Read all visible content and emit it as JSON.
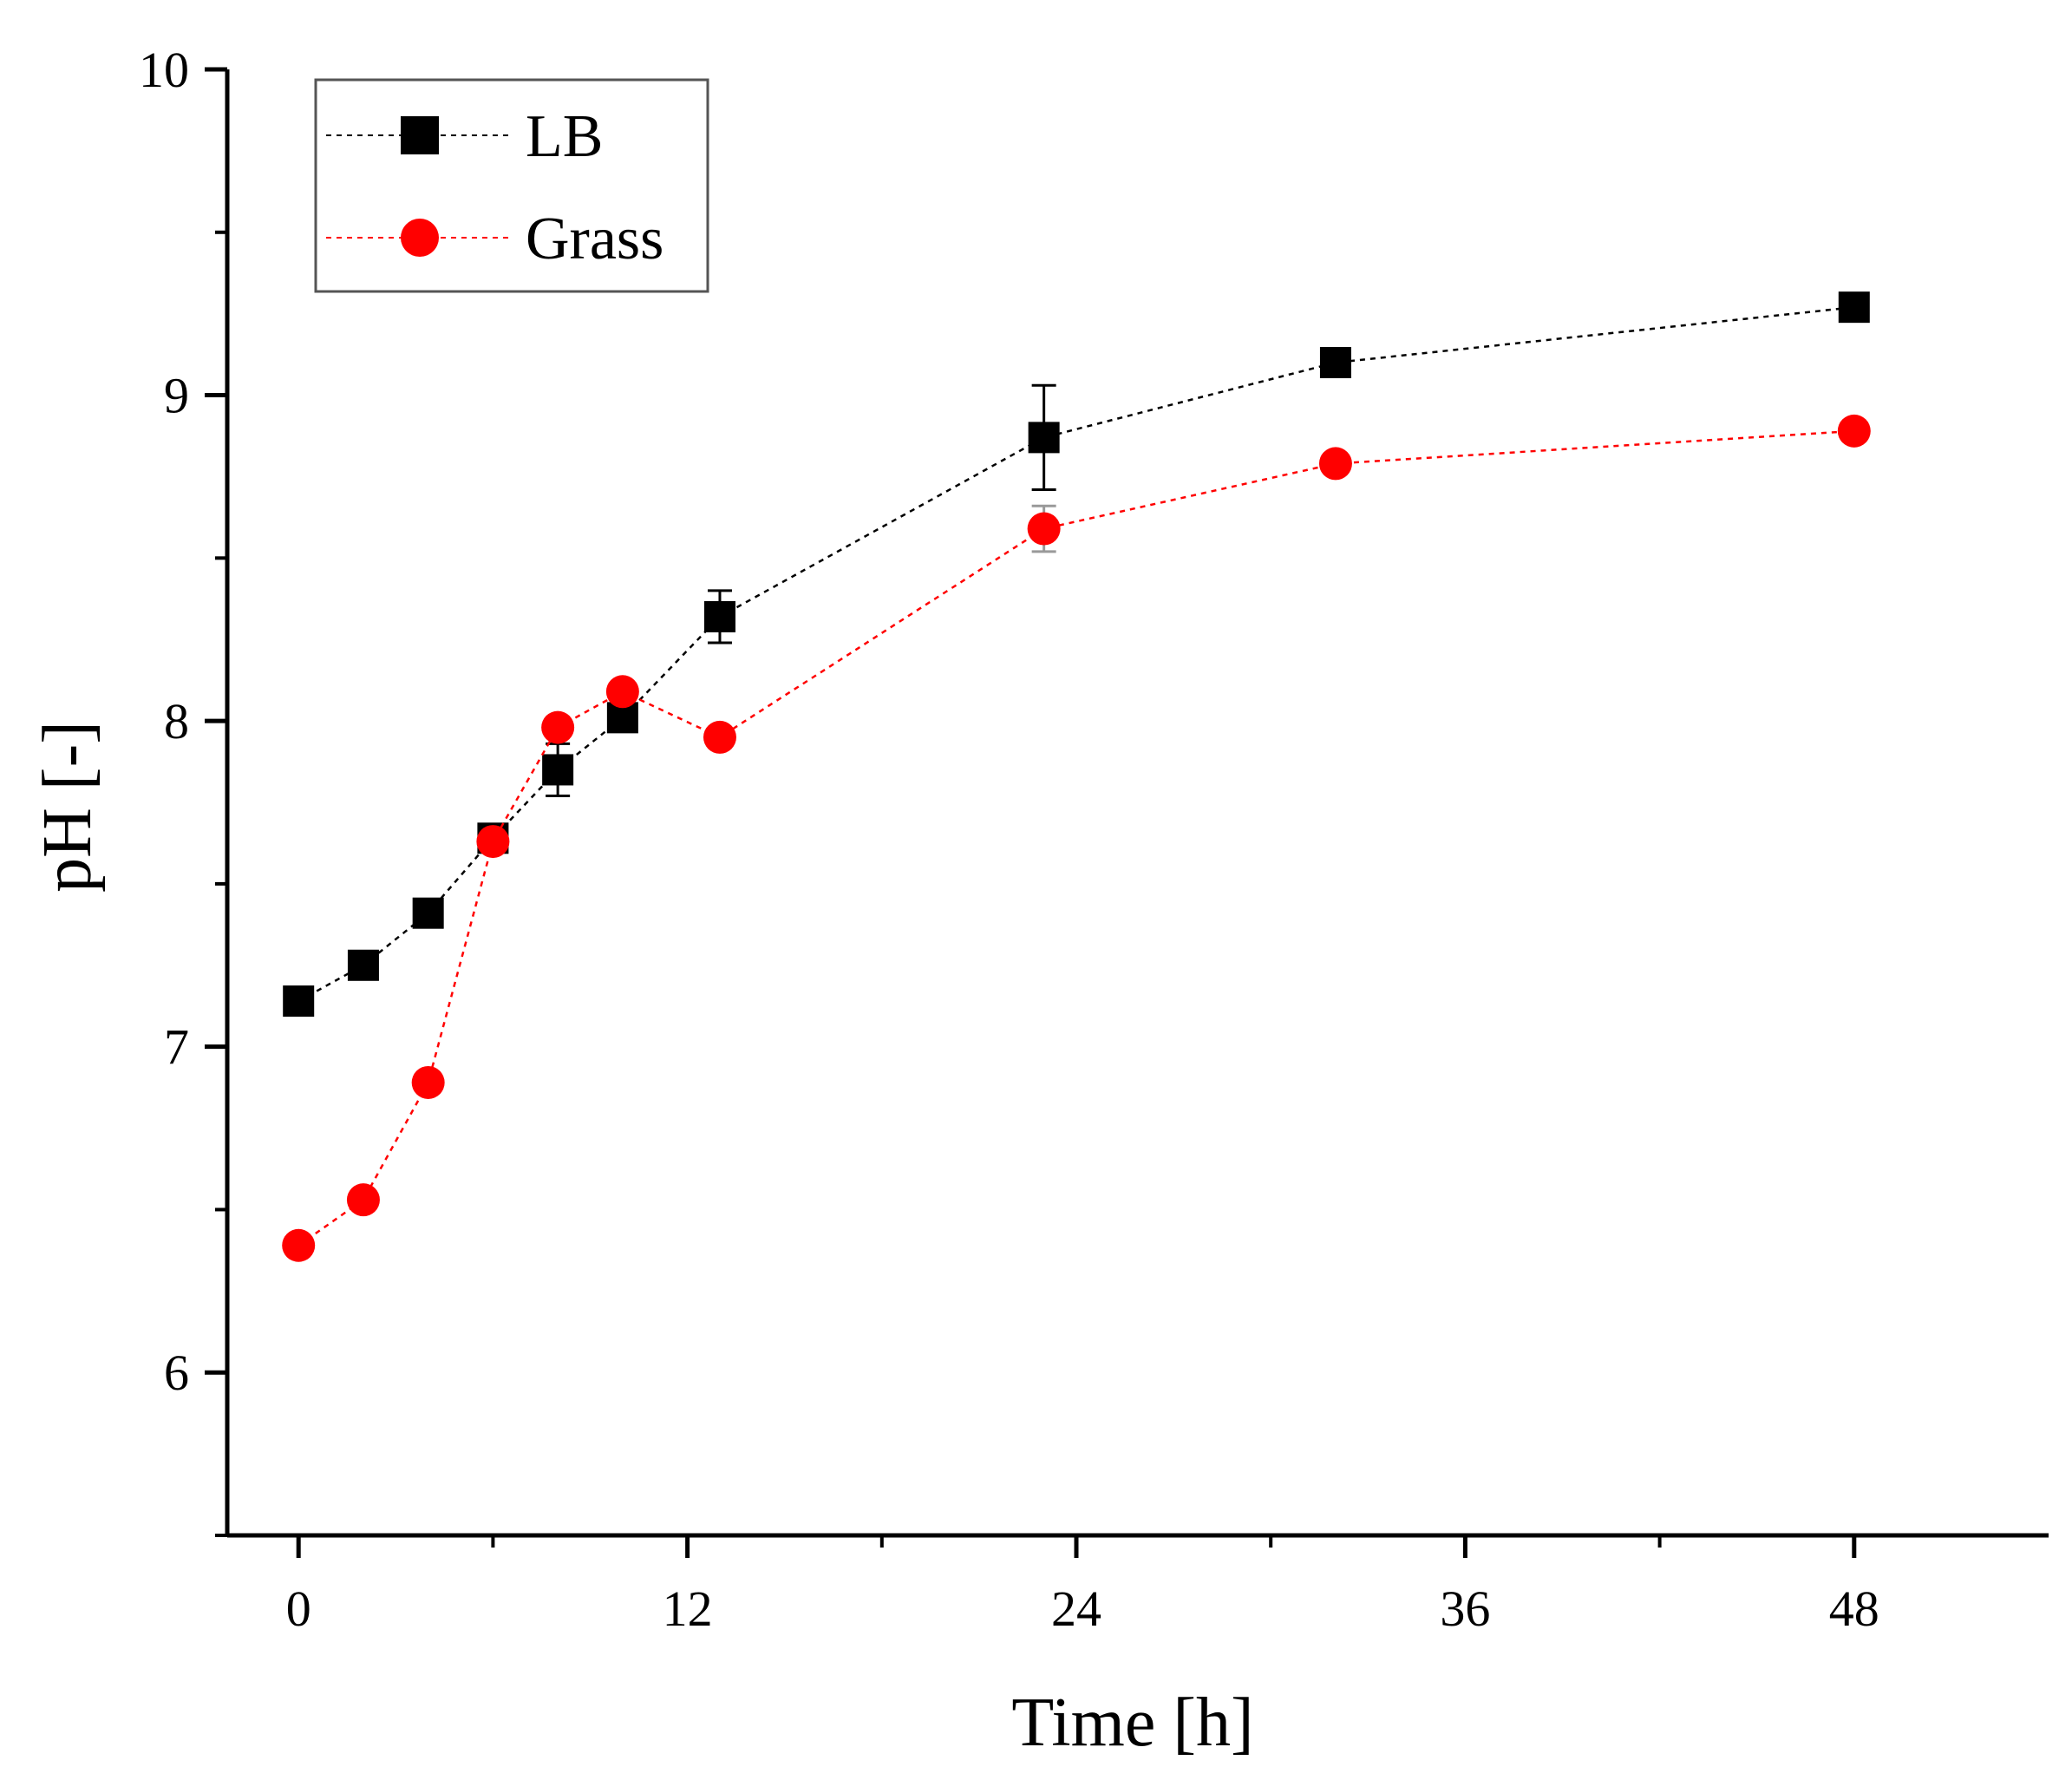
{
  "chart_data": {
    "type": "line",
    "title": "",
    "xlabel": "Time [h]",
    "ylabel": "pH [-]",
    "xlim": [
      -2.2,
      54
    ],
    "ylim": [
      5.5,
      10
    ],
    "xticks": [
      0,
      12,
      24,
      36,
      48
    ],
    "xtick_labels": [
      "0",
      "12",
      "24",
      "36",
      "48"
    ],
    "x_minor_ticks": [
      6,
      18,
      30,
      42
    ],
    "yticks": [
      6,
      7,
      8,
      9,
      10
    ],
    "ytick_labels": [
      "6",
      "7",
      "8",
      "9",
      "10"
    ],
    "y_minor_ticks": [
      5.5,
      6.5,
      7.5,
      8.5,
      9.5
    ],
    "grid": false,
    "legend_position": "top-left",
    "series": [
      {
        "name": "LB",
        "color": "#000000",
        "marker": "square",
        "line_style": "dotted",
        "x": [
          0,
          2,
          4,
          6,
          8,
          10,
          13,
          23,
          32,
          48
        ],
        "y": [
          7.14,
          7.25,
          7.41,
          7.64,
          7.85,
          8.01,
          8.32,
          8.87,
          9.1,
          9.27
        ],
        "error": [
          0.02,
          0.02,
          0.02,
          0.02,
          0.08,
          0.03,
          0.08,
          0.16,
          0.02,
          0.03
        ]
      },
      {
        "name": "Grass",
        "color": "#ff0000",
        "marker": "circle",
        "line_style": "dotted",
        "x": [
          0,
          2,
          4,
          6,
          8,
          10,
          13,
          23,
          32,
          48
        ],
        "y": [
          6.39,
          6.53,
          6.89,
          7.63,
          7.98,
          8.09,
          7.95,
          8.59,
          8.79,
          8.89
        ],
        "error": [
          0.02,
          0.02,
          0.02,
          0.02,
          0.02,
          0.02,
          0.02,
          0.07,
          0.02,
          0.02
        ]
      }
    ]
  }
}
